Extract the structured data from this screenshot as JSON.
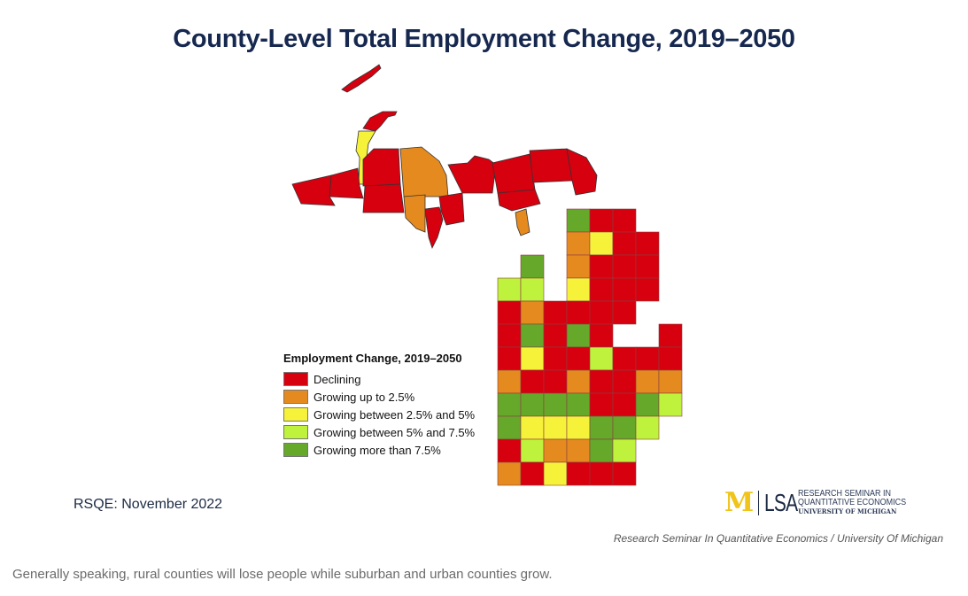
{
  "title": "County-Level Total Employment Change, 2019–2050",
  "source_note": "RSQE: November 2022",
  "logo": {
    "mark": "M",
    "unit": "LSA",
    "line1": "RESEARCH SEMINAR IN",
    "line2": "QUANTITATIVE ECONOMICS",
    "line3": "UNIVERSITY OF MICHIGAN"
  },
  "credit": "Research Seminar In Quantitative Economics  /  University Of Michigan",
  "caption": "Generally speaking, rural counties will lose people while suburban and urban counties grow.",
  "chart_data": {
    "type": "heatmap",
    "subtype": "choropleth",
    "title": "County-Level Total Employment Change, 2019–2050",
    "region": "Michigan counties",
    "legend_title": "Employment Change, 2019–2050",
    "legend_position": "bottom-left",
    "categories": [
      {
        "key": "declining",
        "label": "Declining",
        "color": "#d7000f"
      },
      {
        "key": "up_to_2_5",
        "label": "Growing up to 2.5%",
        "color": "#e48a1f"
      },
      {
        "key": "2_5_to_5",
        "label": "Growing between 2.5% and 5%",
        "color": "#f6f23a"
      },
      {
        "key": "5_to_7_5",
        "label": "Growing between 5% and 7.5%",
        "color": "#bff23c"
      },
      {
        "key": "over_7_5",
        "label": "Growing more than 7.5%",
        "color": "#65a82a"
      }
    ],
    "upper_peninsula": [
      {
        "area": "Isle Royale (Keweenaw)",
        "class": "declining"
      },
      {
        "area": "Keweenaw",
        "class": "declining"
      },
      {
        "area": "Houghton",
        "class": "2_5_to_5"
      },
      {
        "area": "Ontonagon",
        "class": "declining"
      },
      {
        "area": "Gogebic",
        "class": "declining"
      },
      {
        "area": "Baraga",
        "class": "declining"
      },
      {
        "area": "Iron",
        "class": "declining"
      },
      {
        "area": "Marquette",
        "class": "up_to_2_5"
      },
      {
        "area": "Dickinson",
        "class": "up_to_2_5"
      },
      {
        "area": "Menominee",
        "class": "declining"
      },
      {
        "area": "Delta",
        "class": "declining"
      },
      {
        "area": "Alger",
        "class": "declining"
      },
      {
        "area": "Schoolcraft",
        "class": "declining"
      },
      {
        "area": "Luce",
        "class": "declining"
      },
      {
        "area": "Mackinac",
        "class": "declining"
      },
      {
        "area": "Chippewa",
        "class": "declining"
      },
      {
        "area": "Beaver Island (Charlevoix)",
        "class": "up_to_2_5"
      }
    ],
    "lower_peninsula_grid": [
      [
        "",
        "",
        "",
        "over_7_5",
        "declining",
        "declining",
        "",
        ""
      ],
      [
        "",
        "",
        "",
        "up_to_2_5",
        "2_5_to_5",
        "declining",
        "declining",
        ""
      ],
      [
        "",
        "over_7_5",
        "",
        "up_to_2_5",
        "declining",
        "declining",
        "declining",
        ""
      ],
      [
        "5_to_7_5",
        "5_to_7_5",
        "",
        "2_5_to_5",
        "declining",
        "declining",
        "declining",
        ""
      ],
      [
        "declining",
        "up_to_2_5",
        "declining",
        "declining",
        "declining",
        "declining",
        "",
        ""
      ],
      [
        "declining",
        "over_7_5",
        "declining",
        "over_7_5",
        "declining",
        "",
        "",
        "declining"
      ],
      [
        "declining",
        "2_5_to_5",
        "declining",
        "declining",
        "5_to_7_5",
        "declining",
        "declining",
        "declining"
      ],
      [
        "up_to_2_5",
        "declining",
        "declining",
        "up_to_2_5",
        "declining",
        "declining",
        "up_to_2_5",
        "up_to_2_5"
      ],
      [
        "over_7_5",
        "over_7_5",
        "over_7_5",
        "over_7_5",
        "declining",
        "declining",
        "over_7_5",
        "5_to_7_5"
      ],
      [
        "over_7_5",
        "2_5_to_5",
        "2_5_to_5",
        "2_5_to_5",
        "over_7_5",
        "over_7_5",
        "5_to_7_5",
        ""
      ],
      [
        "declining",
        "5_to_7_5",
        "up_to_2_5",
        "up_to_2_5",
        "over_7_5",
        "5_to_7_5",
        "",
        ""
      ],
      [
        "up_to_2_5",
        "declining",
        "2_5_to_5",
        "declining",
        "declining",
        "declining",
        "",
        ""
      ]
    ]
  }
}
